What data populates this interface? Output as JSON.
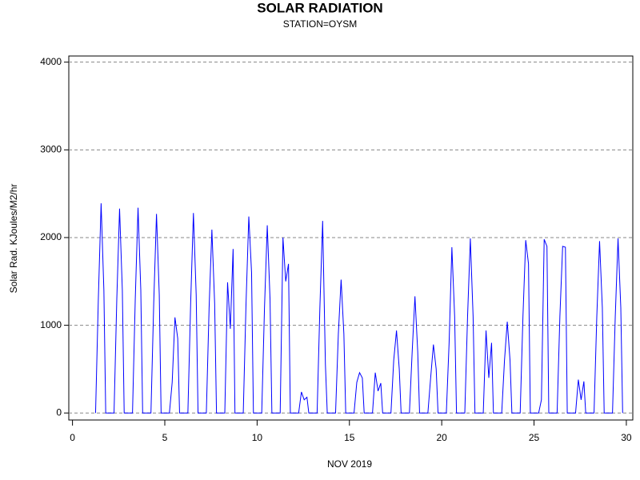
{
  "chart_data": {
    "type": "line",
    "title": "SOLAR RADIATION",
    "subtitle": "STATION=OYSM",
    "xlabel": "NOV 2019",
    "ylabel": "Solar Rad. KJoules/M2/hr",
    "color": "#0000ff",
    "grid": true,
    "xlim": [
      -0.2,
      30.35
    ],
    "ylim": [
      -80,
      4070
    ],
    "xticks": [
      0,
      5,
      10,
      15,
      20,
      25,
      30
    ],
    "yticks": [
      0,
      1000,
      2000,
      3000,
      4000
    ],
    "x": [
      1.25,
      1.4,
      1.55,
      1.7,
      1.8,
      2.25,
      2.4,
      2.55,
      2.7,
      2.8,
      3.25,
      3.4,
      3.55,
      3.7,
      3.8,
      4.25,
      4.4,
      4.55,
      4.7,
      4.8,
      5.25,
      5.4,
      5.55,
      5.7,
      5.8,
      6.25,
      6.4,
      6.55,
      6.7,
      6.8,
      7.25,
      7.4,
      7.55,
      7.7,
      7.8,
      8.25,
      8.4,
      8.55,
      8.7,
      8.8,
      9.25,
      9.4,
      9.55,
      9.7,
      9.8,
      10.25,
      10.4,
      10.55,
      10.7,
      10.8,
      11.25,
      11.4,
      11.55,
      11.7,
      11.8,
      12.25,
      12.4,
      12.55,
      12.7,
      12.8,
      13.25,
      13.4,
      13.55,
      13.7,
      13.8,
      14.25,
      14.4,
      14.55,
      14.7,
      14.8,
      15.25,
      15.4,
      15.55,
      15.7,
      15.8,
      16.25,
      16.4,
      16.55,
      16.7,
      16.8,
      17.25,
      17.4,
      17.55,
      17.7,
      17.8,
      18.25,
      18.4,
      18.55,
      18.7,
      18.8,
      19.25,
      19.4,
      19.55,
      19.7,
      19.8,
      20.25,
      20.4,
      20.55,
      20.7,
      20.8,
      21.25,
      21.4,
      21.55,
      21.7,
      21.8,
      22.25,
      22.4,
      22.55,
      22.7,
      22.8,
      23.25,
      23.4,
      23.55,
      23.7,
      23.8,
      24.25,
      24.4,
      24.55,
      24.7,
      24.8,
      25.25,
      25.4,
      25.55,
      25.7,
      25.8,
      26.25,
      26.4,
      26.55,
      26.7,
      26.8,
      27.25,
      27.4,
      27.55,
      27.7,
      27.8,
      28.25,
      28.4,
      28.55,
      28.7,
      28.8,
      29.25,
      29.4,
      29.55,
      29.7,
      29.8
    ],
    "values": [
      0,
      1300,
      2390,
      1400,
      0,
      0,
      1300,
      2330,
      1400,
      0,
      0,
      1300,
      2340,
      1400,
      0,
      0,
      1250,
      2270,
      1350,
      0,
      0,
      350,
      1090,
      850,
      0,
      0,
      1250,
      2280,
      1350,
      0,
      0,
      1200,
      2090,
      1250,
      0,
      0,
      1490,
      960,
      1870,
      0,
      0,
      1250,
      2240,
      1600,
      0,
      0,
      1200,
      2140,
      1300,
      0,
      0,
      2000,
      1500,
      1700,
      0,
      0,
      240,
      150,
      180,
      0,
      0,
      1200,
      2190,
      550,
      0,
      0,
      900,
      1520,
      900,
      0,
      0,
      350,
      460,
      400,
      0,
      0,
      460,
      250,
      340,
      0,
      0,
      600,
      940,
      500,
      0,
      0,
      700,
      1330,
      700,
      0,
      0,
      400,
      780,
      500,
      0,
      0,
      800,
      1890,
      1100,
      0,
      0,
      1100,
      1990,
      1100,
      0,
      0,
      940,
      400,
      800,
      0,
      0,
      600,
      1040,
      600,
      0,
      0,
      1100,
      1970,
      1700,
      0,
      0,
      150,
      1980,
      1900,
      0,
      0,
      1100,
      1900,
      1890,
      0,
      0,
      380,
      150,
      360,
      0,
      0,
      1100,
      1960,
      1200,
      0,
      0,
      1100,
      1990,
      1200,
      0
    ]
  }
}
